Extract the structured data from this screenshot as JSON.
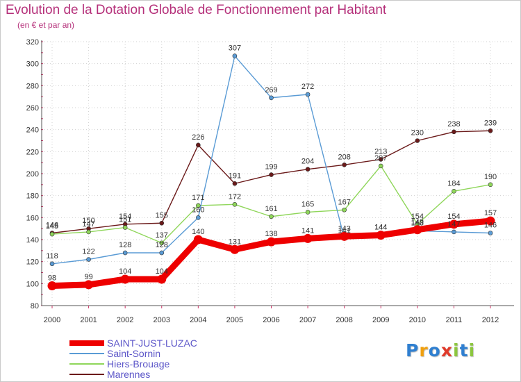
{
  "title": "Evolution de la Dotation Globale de Fonctionnement par Habitant",
  "subtitle": "(en € et par an)",
  "logo": {
    "text": "Proxiti",
    "letters": [
      {
        "ch": "P",
        "color": "#2f7fd0"
      },
      {
        "ch": "r",
        "color": "#f0a010"
      },
      {
        "ch": "o",
        "color": "#2f7fd0"
      },
      {
        "ch": "x",
        "color": "#e03a2a"
      },
      {
        "ch": "i",
        "color": "#8cc63f"
      },
      {
        "ch": "t",
        "color": "#2f7fd0"
      },
      {
        "ch": "i",
        "color": "#8cc63f"
      }
    ]
  },
  "chart_data": {
    "type": "line",
    "title": "Evolution de la Dotation Globale de Fonctionnement par Habitant",
    "subtitle": "(en € et par an)",
    "xlabel": "",
    "ylabel": "",
    "categories": [
      "2000",
      "2001",
      "2002",
      "2003",
      "2004",
      "2005",
      "2006",
      "2007",
      "2008",
      "2009",
      "2010",
      "2011",
      "2012"
    ],
    "ylim": [
      80,
      320
    ],
    "yticks": [
      80,
      100,
      120,
      140,
      160,
      180,
      200,
      220,
      240,
      260,
      280,
      300,
      320
    ],
    "grid": true,
    "legend_position": "bottom-left",
    "series": [
      {
        "name": "Marennes",
        "color": "#6b1a1a",
        "values": [
          146,
          150,
          154,
          155,
          226,
          191,
          199,
          204,
          208,
          213,
          230,
          238,
          239
        ],
        "labels": [
          "146",
          "150",
          "154",
          "155",
          "226",
          "191",
          "199",
          "204",
          "208",
          "213",
          "230",
          "238",
          "239"
        ]
      },
      {
        "name": "Hiers-Brouage",
        "color": "#8fd65a",
        "values": [
          145,
          147,
          151,
          137,
          171,
          172,
          161,
          165,
          167,
          207,
          154,
          184,
          190
        ],
        "labels": [
          "145",
          "147",
          "151",
          "137",
          "171",
          "172",
          "161",
          "165",
          "167",
          "207",
          "154",
          "184",
          "190"
        ]
      },
      {
        "name": "Saint-Sornin",
        "color": "#5a9bd5",
        "values": [
          118,
          122,
          128,
          128,
          160,
          307,
          269,
          272,
          141,
          144,
          148,
          147,
          146
        ],
        "labels": [
          "118",
          "122",
          "128",
          "128",
          "160",
          "307",
          "269",
          "272",
          "141",
          "144",
          "148",
          "147",
          "146"
        ]
      },
      {
        "name": "SAINT-JUST-LUZAC",
        "color": "#ee0000",
        "values": [
          98,
          99,
          104,
          104,
          140,
          131,
          138,
          141,
          143,
          144,
          149,
          154,
          157
        ],
        "labels": [
          "98",
          "99",
          "104",
          "104",
          "140",
          "131",
          "138",
          "141",
          "143",
          "144",
          "149",
          "154",
          "157"
        ]
      }
    ],
    "legend": [
      {
        "name": "SAINT-JUST-LUZAC",
        "color": "#ee0000"
      },
      {
        "name": "Saint-Sornin",
        "color": "#5a9bd5"
      },
      {
        "name": "Hiers-Brouage",
        "color": "#8fd65a"
      },
      {
        "name": "Marennes",
        "color": "#6b1a1a"
      }
    ]
  }
}
